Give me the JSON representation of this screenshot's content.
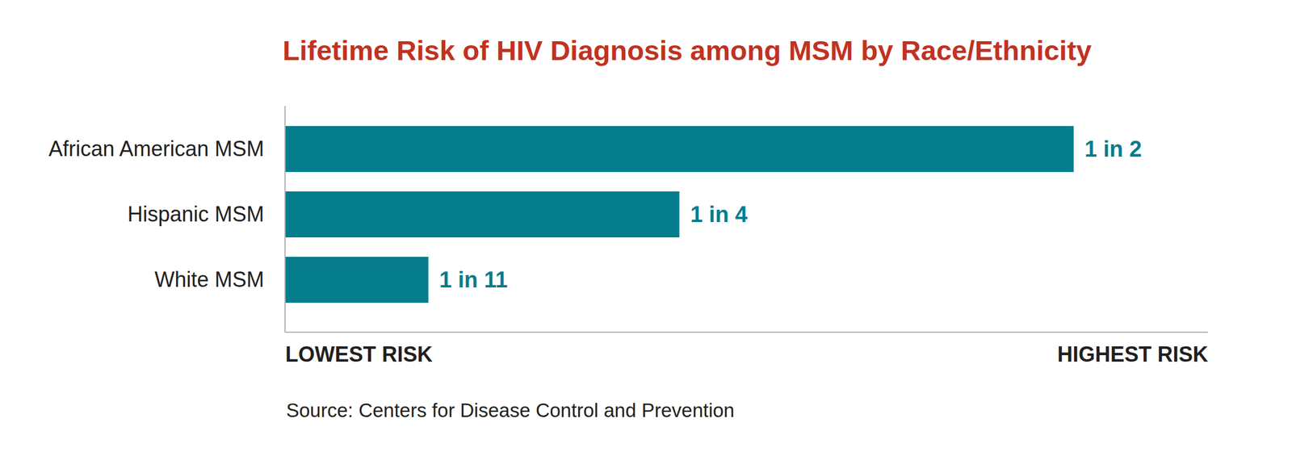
{
  "chart_data": {
    "type": "bar",
    "orientation": "horizontal",
    "title": "Lifetime Risk of HIV Diagnosis among MSM by Race/Ethnicity",
    "categories": [
      "African American MSM",
      "Hispanic MSM",
      "White MSM"
    ],
    "values": [
      0.5,
      0.25,
      0.0909
    ],
    "value_labels": [
      "1 in 2",
      "1 in 4",
      "1 in 11"
    ],
    "data_labels": true,
    "color": "#067d8c",
    "xlim": [
      0,
      0.585
    ],
    "xticks": [
      {
        "value": 0,
        "label": "LOWEST RISK"
      },
      {
        "value": 0.585,
        "label": "HIGHEST RISK"
      }
    ],
    "grid": false,
    "caption": "Source: Centers for Disease Control and Prevention"
  }
}
